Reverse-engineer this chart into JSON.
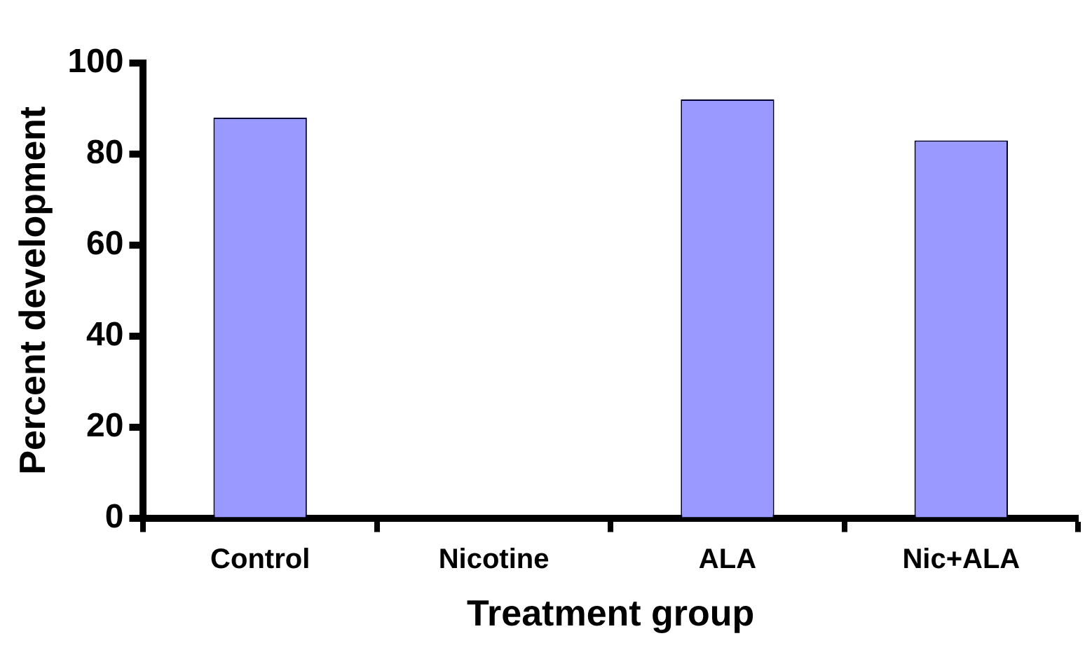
{
  "chart_data": {
    "type": "bar",
    "xlabel": "Treatment group",
    "ylabel": "Percent development",
    "categories": [
      "Control",
      "Nicotine",
      "ALA",
      "Nic+ALA"
    ],
    "values": [
      88,
      0,
      92,
      83
    ],
    "color": "#9999ff",
    "ylim": [
      0,
      100
    ],
    "yticks": [
      0,
      20,
      40,
      60,
      80,
      100
    ],
    "grid": false,
    "legend": false
  }
}
